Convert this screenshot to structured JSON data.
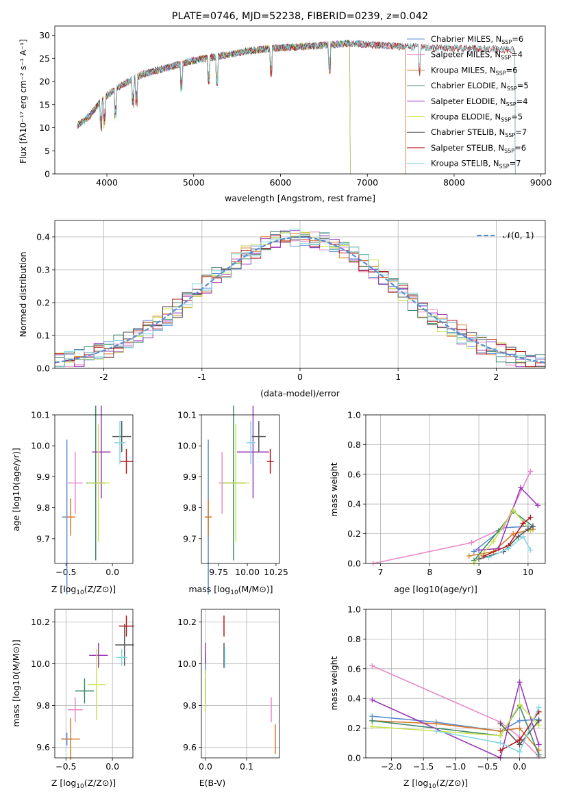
{
  "title": "PLATE=0746, MJD=52238, FIBERID=0239, z=0.042",
  "colors": {
    "chabrier_miles": "#5a8cd0",
    "salpeter_miles": "#e888c8",
    "kroupa_miles": "#d87a2a",
    "chabrier_elodie": "#3c8a6a",
    "salpeter_elodie": "#9a38b8",
    "kroupa_elodie": "#c8e050",
    "chabrier_stelib": "#555555",
    "salpeter_stelib": "#b01818",
    "kroupa_stelib": "#80d8e0"
  },
  "chart_data": [
    {
      "id": "spectrum",
      "type": "line",
      "title": "PLATE=0746, MJD=52238, FIBERID=0239, z=0.042",
      "xlabel": "wavelength [Angstrom, rest frame]",
      "ylabel": "Flux [fλ10⁻¹⁷ erg cm⁻² s⁻¹ A⁻¹]",
      "xlim": [
        3400,
        9050
      ],
      "ylim": [
        0,
        32
      ],
      "xticks": [
        4000,
        5000,
        6000,
        7000,
        8000,
        9000
      ],
      "yticks": [
        0,
        5,
        10,
        15,
        20,
        25,
        30
      ],
      "legend_position": "top-right",
      "continuum": {
        "x": [
          3660,
          3800,
          3900,
          4000,
          4200,
          4400,
          4600,
          4800,
          5000,
          5200,
          5400,
          5600,
          5800,
          6000,
          6200,
          6400,
          6600,
          6800,
          7000,
          7200,
          7400
        ],
        "y": [
          10.5,
          12.5,
          15.0,
          17.0,
          19.5,
          21.5,
          22.5,
          23.5,
          24.5,
          25.2,
          25.8,
          26.5,
          27.0,
          27.3,
          27.5,
          27.7,
          28.0,
          28.3,
          28.0,
          27.8,
          27.5
        ]
      },
      "series": [
        {
          "name": "Chabrier MILES, N_SSP=6",
          "label_main": "Chabrier MILES, N",
          "label_sub": "SSP",
          "label_tail": "=6",
          "x_end": 7440
        },
        {
          "name": "Salpeter MILES, N_SSP=4",
          "label_main": "Salpeter MILES, N",
          "label_sub": "SSP",
          "label_tail": "=4",
          "x_end": 7440
        },
        {
          "name": "Kroupa MILES, N_SSP=6",
          "label_main": "Kroupa MILES, N",
          "label_sub": "SSP",
          "label_tail": "=6",
          "x_end": 7440
        },
        {
          "name": "Chabrier ELODIE, N_SSP=5",
          "label_main": "Chabrier ELODIE, N",
          "label_sub": "SSP",
          "label_tail": "=5",
          "x_end": 6800
        },
        {
          "name": "Salpeter ELODIE, N_SSP=4",
          "label_main": "Salpeter ELODIE, N",
          "label_sub": "SSP",
          "label_tail": "=4",
          "x_end": 6800
        },
        {
          "name": "Kroupa ELODIE, N_SSP=5",
          "label_main": "Kroupa ELODIE, N",
          "label_sub": "SSP",
          "label_tail": "=5",
          "x_end": 6800
        },
        {
          "name": "Chabrier STELIB, N_SSP=7",
          "label_main": "Chabrier STELIB, N",
          "label_sub": "SSP",
          "label_tail": "=7",
          "x_end": 8700
        },
        {
          "name": "Salpeter STELIB, N_SSP=6",
          "label_main": "Salpeter STELIB, N",
          "label_sub": "SSP",
          "label_tail": "=6",
          "x_end": 8700
        },
        {
          "name": "Kroupa STELIB, N_SSP=7",
          "label_main": "Kroupa STELIB, N",
          "label_sub": "SSP",
          "label_tail": "=7",
          "x_end": 8700
        }
      ]
    },
    {
      "id": "residuals",
      "type": "line",
      "xlabel": "(data-model)/error",
      "ylabel": "Normed distribution",
      "xlim": [
        -2.5,
        2.5
      ],
      "ylim": [
        0,
        0.45
      ],
      "xticks": [
        -2,
        -1,
        0,
        1,
        2
      ],
      "yticks": [
        0.0,
        0.1,
        0.2,
        0.3,
        0.4
      ],
      "grid": true,
      "bin_width": 0.1,
      "reference_curve": {
        "name": "N(0,1)",
        "label": "𝒩(0, 1)",
        "mean": 0,
        "sigma": 1
      },
      "legend_position": "top-right"
    },
    {
      "id": "age_vs_z",
      "type": "scatter",
      "xlabel_main": "Z [log",
      "xlabel_sub": "10",
      "xlabel_tail": "(Z/Z⊙)]",
      "ylabel": "age  [log10(age/yr)]",
      "xlim": [
        -0.62,
        0.22
      ],
      "ylim": [
        9.62,
        10.1
      ],
      "xticks": [
        -0.5,
        0.0
      ],
      "yticks": [
        9.7,
        9.8,
        9.9,
        10.0,
        10.1
      ],
      "points": [
        {
          "x": -0.49,
          "y": 9.77,
          "xerr": 0.05,
          "yerr": 0.25
        },
        {
          "x": -0.4,
          "y": 9.88,
          "xerr": 0.08,
          "yerr": 0.1
        },
        {
          "x": -0.45,
          "y": 9.77,
          "xerr": 0.05,
          "yerr": 0.06
        },
        {
          "x": -0.18,
          "y": 9.88,
          "xerr": 0.1,
          "yerr": 0.25
        },
        {
          "x": -0.12,
          "y": 9.98,
          "xerr": 0.1,
          "yerr": 0.15
        },
        {
          "x": -0.15,
          "y": 9.88,
          "xerr": 0.12,
          "yerr": 0.19
        },
        {
          "x": 0.1,
          "y": 10.03,
          "xerr": 0.1,
          "yerr": 0.05
        },
        {
          "x": 0.15,
          "y": 9.95,
          "xerr": 0.07,
          "yerr": 0.04
        },
        {
          "x": 0.08,
          "y": 10.01,
          "xerr": 0.06,
          "yerr": 0.07
        }
      ]
    },
    {
      "id": "age_vs_mass",
      "type": "scatter",
      "xlabel_main": "mass [log",
      "xlabel_sub": "10",
      "xlabel_tail": "(M/M⊙)]",
      "xlim": [
        9.6,
        10.28
      ],
      "ylim": [
        9.62,
        10.1
      ],
      "xticks": [
        9.75,
        10.0,
        10.25
      ],
      "yticks": [
        9.7,
        9.8,
        9.9,
        10.0,
        10.1
      ],
      "points": [
        {
          "x": 9.66,
          "y": 9.77,
          "xerr": 0.03,
          "yerr": 0.25
        },
        {
          "x": 9.78,
          "y": 9.88,
          "xerr": 0.03,
          "yerr": 0.1
        },
        {
          "x": 9.66,
          "y": 9.77,
          "xerr": 0.03,
          "yerr": 0.06
        },
        {
          "x": 9.88,
          "y": 9.88,
          "xerr": 0.1,
          "yerr": 0.25
        },
        {
          "x": 10.05,
          "y": 9.98,
          "xerr": 0.14,
          "yerr": 0.15
        },
        {
          "x": 9.9,
          "y": 9.88,
          "xerr": 0.12,
          "yerr": 0.19
        },
        {
          "x": 10.1,
          "y": 10.03,
          "xerr": 0.06,
          "yerr": 0.05
        },
        {
          "x": 10.2,
          "y": 9.95,
          "xerr": 0.03,
          "yerr": 0.04
        },
        {
          "x": 10.03,
          "y": 10.01,
          "xerr": 0.04,
          "yerr": 0.07
        }
      ]
    },
    {
      "id": "weight_vs_age",
      "type": "line",
      "xlabel": "age  [log10(age/yr)]",
      "ylabel": "mass weight",
      "xlim": [
        6.7,
        10.35
      ],
      "ylim": [
        0,
        1.0
      ],
      "xticks": [
        7,
        8,
        9,
        10
      ],
      "yticks": [
        0.0,
        0.2,
        0.4,
        0.6,
        0.8,
        1.0
      ],
      "grid": true,
      "series": [
        {
          "x": [
            8.9,
            9.5,
            10.0
          ],
          "y": [
            0.08,
            0.24,
            0.25
          ]
        },
        {
          "x": [
            6.85,
            8.85,
            9.5,
            10.05
          ],
          "y": [
            0.0,
            0.14,
            0.24,
            0.62
          ]
        },
        {
          "x": [
            8.8,
            9.3,
            9.7,
            10.1
          ],
          "y": [
            0.05,
            0.08,
            0.2,
            0.23
          ]
        },
        {
          "x": [
            8.9,
            9.4,
            9.7,
            10.1
          ],
          "y": [
            0.02,
            0.22,
            0.35,
            0.25
          ]
        },
        {
          "x": [
            9.0,
            9.4,
            9.85,
            10.2
          ],
          "y": [
            0.09,
            0.1,
            0.51,
            0.39
          ]
        },
        {
          "x": [
            8.9,
            9.3,
            9.7,
            10.05
          ],
          "y": [
            0.0,
            0.15,
            0.36,
            0.22
          ]
        },
        {
          "x": [
            9.0,
            9.5,
            9.8,
            10.0,
            10.1
          ],
          "y": [
            0.03,
            0.08,
            0.18,
            0.23,
            0.25
          ]
        },
        {
          "x": [
            9.1,
            9.6,
            9.9,
            10.05
          ],
          "y": [
            0.05,
            0.12,
            0.27,
            0.31
          ]
        },
        {
          "x": [
            9.2,
            9.6,
            9.9,
            10.05
          ],
          "y": [
            0.04,
            0.1,
            0.18,
            0.09
          ]
        }
      ]
    },
    {
      "id": "mass_vs_z",
      "type": "scatter",
      "xlabel_main": "Z [log",
      "xlabel_sub": "10",
      "xlabel_tail": "(Z/Z⊙)]",
      "ylabel": "mass [log10(M/M⊙)]",
      "xlim": [
        -0.62,
        0.22
      ],
      "ylim": [
        9.55,
        10.26
      ],
      "xticks": [
        -0.5,
        0.0
      ],
      "yticks": [
        9.6,
        9.8,
        10.0,
        10.2
      ],
      "grid": true,
      "points": [
        {
          "x": -0.49,
          "y": 9.64,
          "xerr": 0.06,
          "yerr": 0.03
        },
        {
          "x": -0.4,
          "y": 9.78,
          "xerr": 0.08,
          "yerr": 0.06
        },
        {
          "x": -0.45,
          "y": 9.64,
          "xerr": 0.1,
          "yerr": 0.1
        },
        {
          "x": -0.3,
          "y": 9.87,
          "xerr": 0.1,
          "yerr": 0.06
        },
        {
          "x": -0.15,
          "y": 10.04,
          "xerr": 0.1,
          "yerr": 0.06
        },
        {
          "x": -0.17,
          "y": 9.9,
          "xerr": 0.1,
          "yerr": 0.17
        },
        {
          "x": 0.13,
          "y": 10.09,
          "xerr": 0.1,
          "yerr": 0.1
        },
        {
          "x": 0.15,
          "y": 10.18,
          "xerr": 0.08,
          "yerr": 0.05
        },
        {
          "x": 0.1,
          "y": 10.03,
          "xerr": 0.06,
          "yerr": 0.04
        }
      ]
    },
    {
      "id": "mass_vs_ebv",
      "type": "scatter",
      "xlabel": "E(B-V)",
      "xlim": [
        -0.01,
        0.18
      ],
      "ylim": [
        9.55,
        10.26
      ],
      "xticks": [
        0.0,
        0.1
      ],
      "yticks": [
        9.6,
        9.8,
        10.0,
        10.2
      ],
      "grid": true,
      "points": [
        {
          "x": 0.0,
          "y": 10.0,
          "xerr": 0.0,
          "yerr": 0.05
        },
        {
          "x": 0.16,
          "y": 9.78,
          "xerr": 0.0,
          "yerr": 0.06
        },
        {
          "x": 0.17,
          "y": 9.64,
          "xerr": 0.0,
          "yerr": 0.07
        },
        {
          "x": 0.0,
          "y": 9.87,
          "xerr": 0.0,
          "yerr": 0.06
        },
        {
          "x": 0.0,
          "y": 10.05,
          "xerr": 0.0,
          "yerr": 0.05
        },
        {
          "x": 0.0,
          "y": 9.87,
          "xerr": 0.0,
          "yerr": 0.1
        },
        {
          "x": 0.045,
          "y": 10.04,
          "xerr": 0.0,
          "yerr": 0.06
        },
        {
          "x": 0.045,
          "y": 10.18,
          "xerr": 0.0,
          "yerr": 0.05
        },
        {
          "x": 0.047,
          "y": 10.03,
          "xerr": 0.0,
          "yerr": 0.05
        }
      ]
    },
    {
      "id": "weight_vs_z",
      "type": "line",
      "xlabel_main": "Z [log",
      "xlabel_sub": "10",
      "xlabel_tail": "(Z/Z⊙)]",
      "ylabel": "mass weight",
      "xlim": [
        -2.4,
        0.4
      ],
      "ylim": [
        0,
        1.0
      ],
      "xticks": [
        -2.0,
        -1.5,
        -1.0,
        -0.5,
        0.0
      ],
      "yticks": [
        0.0,
        0.2,
        0.4,
        0.6,
        0.8,
        1.0
      ],
      "grid": true,
      "series": [
        {
          "x": [
            -2.3,
            -1.3,
            -0.3,
            0.0,
            0.3
          ],
          "y": [
            0.28,
            0.24,
            0.18,
            0.25,
            0.26
          ]
        },
        {
          "x": [
            -2.3,
            -0.3,
            0.0,
            0.3
          ],
          "y": [
            0.62,
            0.24,
            0.14,
            0.01
          ]
        },
        {
          "x": [
            -2.3,
            -1.3,
            -0.3,
            0.0,
            0.3
          ],
          "y": [
            0.25,
            0.23,
            0.18,
            0.2,
            0.05
          ]
        },
        {
          "x": [
            -2.3,
            -0.3,
            0.0,
            0.3
          ],
          "y": [
            0.25,
            0.15,
            0.35,
            0.02
          ]
        },
        {
          "x": [
            -2.3,
            -0.3,
            0.0,
            0.3
          ],
          "y": [
            0.39,
            0.0,
            0.51,
            0.09
          ]
        },
        {
          "x": [
            -2.3,
            -0.3,
            0.0,
            0.3
          ],
          "y": [
            0.21,
            0.15,
            0.36,
            0.22
          ]
        },
        {
          "x": [
            -0.3,
            0.0,
            0.3
          ],
          "y": [
            0.23,
            0.09,
            0.25
          ]
        },
        {
          "x": [
            -0.3,
            0.0,
            0.3
          ],
          "y": [
            0.05,
            0.12,
            0.31
          ]
        },
        {
          "x": [
            -1.3,
            -0.3,
            0.0,
            0.3
          ],
          "y": [
            0.18,
            0.1,
            0.04,
            0.34
          ]
        }
      ]
    }
  ]
}
